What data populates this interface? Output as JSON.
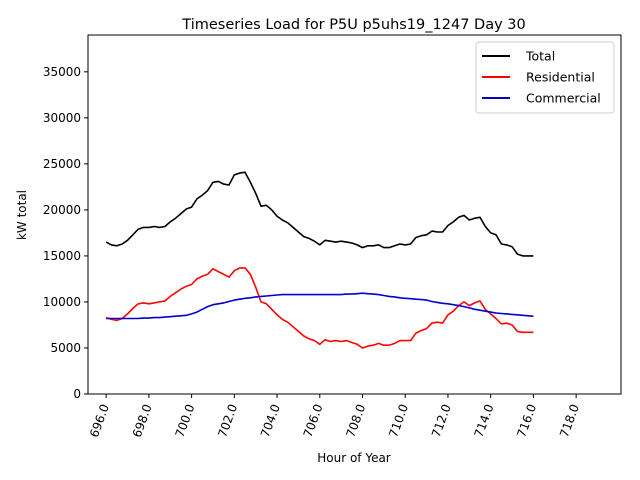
{
  "chart_data": {
    "type": "line",
    "title": "Timeseries Load for P5U p5uhs19_1247  Day 30",
    "xlabel": "Hour of Year",
    "ylabel": "kW total",
    "xlim": [
      695.15,
      720.1
    ],
    "ylim": [
      0,
      39000
    ],
    "x_ticks": [
      696,
      698,
      700,
      702,
      704,
      706,
      708,
      710,
      712,
      714,
      716,
      718
    ],
    "x_tick_labels": [
      "696.0",
      "698.0",
      "700.0",
      "702.0",
      "704.0",
      "706.0",
      "708.0",
      "710.0",
      "712.0",
      "714.0",
      "716.0",
      "718.0"
    ],
    "y_ticks": [
      0,
      5000,
      10000,
      15000,
      20000,
      25000,
      30000,
      35000
    ],
    "y_tick_labels": [
      "0",
      "5000",
      "10000",
      "15000",
      "20000",
      "25000",
      "30000",
      "35000"
    ],
    "legend_position": "top-right",
    "x_start": 696.0,
    "x_step": 0.25,
    "series": [
      {
        "name": "Total",
        "color": "#000000",
        "values": [
          16500,
          16200,
          16100,
          16300,
          16700,
          17300,
          17900,
          18100,
          18100,
          18200,
          18100,
          18200,
          18700,
          19100,
          19600,
          20100,
          20300,
          21200,
          21600,
          22100,
          23000,
          23100,
          22800,
          22700,
          23800,
          24000,
          24100,
          23000,
          21800,
          20400,
          20500,
          20000,
          19300,
          18900,
          18600,
          18100,
          17600,
          17100,
          16900,
          16600,
          16200,
          16700,
          16600,
          16500,
          16600,
          16500,
          16400,
          16200,
          15900,
          16100,
          16100,
          16200,
          15900,
          15900,
          16100,
          16300,
          16200,
          16300,
          17000,
          17200,
          17300,
          17700,
          17600,
          17600,
          18300,
          18700,
          19200,
          19400,
          18900,
          19100,
          19200,
          18200,
          17500,
          17300,
          16300,
          16200,
          16000,
          15200,
          15000,
          15000,
          15000
        ]
      },
      {
        "name": "Residential",
        "color": "#ff0000",
        "values": [
          8300,
          8100,
          8000,
          8200,
          8700,
          9300,
          9800,
          9900,
          9800,
          9900,
          10000,
          10100,
          10600,
          11000,
          11400,
          11700,
          11900,
          12500,
          12800,
          13000,
          13600,
          13300,
          13000,
          12700,
          13400,
          13700,
          13700,
          13000,
          11600,
          10000,
          9800,
          9200,
          8600,
          8100,
          7800,
          7300,
          6800,
          6300,
          6000,
          5800,
          5400,
          5900,
          5700,
          5800,
          5700,
          5800,
          5600,
          5400,
          5000,
          5200,
          5300,
          5500,
          5300,
          5300,
          5500,
          5800,
          5800,
          5800,
          6600,
          6900,
          7100,
          7700,
          7800,
          7700,
          8600,
          9000,
          9600,
          10000,
          9600,
          9900,
          10100,
          9200,
          8700,
          8200,
          7600,
          7700,
          7500,
          6800,
          6700,
          6700,
          6700
        ]
      },
      {
        "name": "Commercial",
        "color": "#0000cc",
        "values": [
          8200,
          8200,
          8200,
          8200,
          8200,
          8200,
          8200,
          8250,
          8250,
          8300,
          8300,
          8350,
          8400,
          8450,
          8500,
          8550,
          8700,
          8900,
          9200,
          9500,
          9700,
          9800,
          9900,
          10050,
          10200,
          10300,
          10400,
          10450,
          10550,
          10600,
          10650,
          10700,
          10750,
          10800,
          10800,
          10800,
          10800,
          10800,
          10800,
          10800,
          10800,
          10800,
          10800,
          10800,
          10800,
          10850,
          10850,
          10900,
          10950,
          10900,
          10850,
          10800,
          10700,
          10600,
          10550,
          10450,
          10400,
          10350,
          10300,
          10250,
          10200,
          10050,
          9950,
          9850,
          9800,
          9700,
          9600,
          9500,
          9350,
          9200,
          9100,
          9000,
          8900,
          8800,
          8750,
          8700,
          8650,
          8600,
          8550,
          8500,
          8450
        ]
      }
    ]
  }
}
